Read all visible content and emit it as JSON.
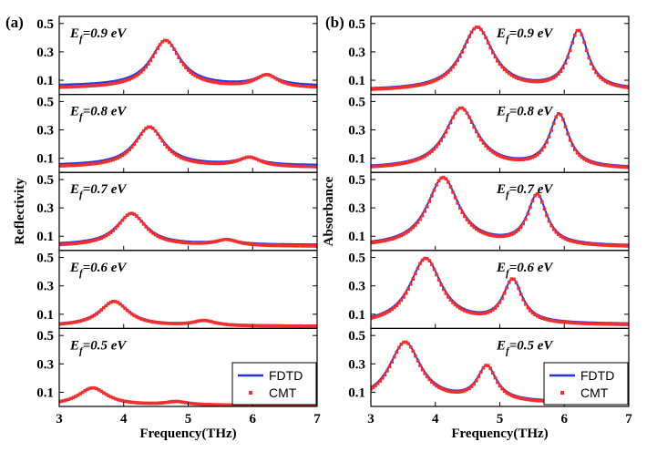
{
  "colors": {
    "fdtd": "#1f35e6",
    "cmt": "#f03030",
    "axis": "#000000"
  },
  "chart_data": [
    {
      "type": "line",
      "panel_label": "(a)",
      "xlabel": "Frequency(THz)",
      "ylabel": "Reflectivity",
      "xlim": [
        3,
        7
      ],
      "xticks": [
        "3",
        "4",
        "5",
        "6",
        "7"
      ],
      "yticks": [
        "0.1",
        "0.3",
        "0.5"
      ],
      "ylim": [
        0,
        0.55
      ],
      "legend": {
        "placement": "bottom-right",
        "entries": [
          "FDTD",
          "CMT"
        ]
      },
      "series_names": [
        "FDTD",
        "CMT"
      ],
      "subplots": [
        {
          "ef_prefix": "E",
          "ef_sub": "f",
          "ef_value": "=0.9 eV",
          "base": 0.06,
          "peaks": [
            {
              "x": 4.65,
              "y": 0.38,
              "w": 0.28
            },
            {
              "x": 6.22,
              "y": 0.13,
              "w": 0.22
            }
          ]
        },
        {
          "ef_prefix": "E",
          "ef_sub": "f",
          "ef_value": "=0.8 eV",
          "base": 0.05,
          "peaks": [
            {
              "x": 4.4,
              "y": 0.32,
              "w": 0.28
            },
            {
              "x": 5.95,
              "y": 0.1,
              "w": 0.22
            }
          ]
        },
        {
          "ef_prefix": "E",
          "ef_sub": "f",
          "ef_value": "=0.7 eV",
          "base": 0.04,
          "peaks": [
            {
              "x": 4.12,
              "y": 0.26,
              "w": 0.28
            },
            {
              "x": 5.6,
              "y": 0.07,
              "w": 0.22
            }
          ]
        },
        {
          "ef_prefix": "E",
          "ef_sub": "f",
          "ef_value": "=0.6 eV",
          "base": 0.02,
          "peaks": [
            {
              "x": 3.85,
              "y": 0.19,
              "w": 0.28
            },
            {
              "x": 5.25,
              "y": 0.05,
              "w": 0.22
            }
          ]
        },
        {
          "ef_prefix": "E",
          "ef_sub": "f",
          "ef_value": "=0.5 eV",
          "base": 0.01,
          "peaks": [
            {
              "x": 3.52,
              "y": 0.13,
              "w": 0.28
            },
            {
              "x": 4.82,
              "y": 0.03,
              "w": 0.22
            }
          ]
        }
      ]
    },
    {
      "type": "line",
      "panel_label": "(b)",
      "xlabel": "Frequency(THz)",
      "ylabel": "Absorbance",
      "xlim": [
        3,
        7
      ],
      "xticks": [
        "3",
        "4",
        "5",
        "6",
        "7"
      ],
      "yticks": [
        "0.1",
        "0.3",
        "0.5"
      ],
      "ylim": [
        0,
        0.55
      ],
      "legend": {
        "placement": "right",
        "entries": [
          "FDTD",
          "CMT"
        ]
      },
      "series_names": [
        "FDTD",
        "CMT"
      ],
      "subplots": [
        {
          "ef_prefix": "E",
          "ef_sub": "f",
          "ef_value": "=0.9 eV",
          "base": 0.03,
          "peaks": [
            {
              "x": 4.65,
              "y": 0.47,
              "w": 0.3
            },
            {
              "x": 6.22,
              "y": 0.44,
              "w": 0.18
            }
          ]
        },
        {
          "ef_prefix": "E",
          "ef_sub": "f",
          "ef_value": "=0.8 eV",
          "base": 0.03,
          "peaks": [
            {
              "x": 4.4,
              "y": 0.45,
              "w": 0.3
            },
            {
              "x": 5.92,
              "y": 0.4,
              "w": 0.18
            }
          ]
        },
        {
          "ef_prefix": "E",
          "ef_sub": "f",
          "ef_value": "=0.7 eV",
          "base": 0.03,
          "peaks": [
            {
              "x": 4.12,
              "y": 0.51,
              "w": 0.3
            },
            {
              "x": 5.58,
              "y": 0.38,
              "w": 0.18
            }
          ]
        },
        {
          "ef_prefix": "E",
          "ef_sub": "f",
          "ef_value": "=0.6 eV",
          "base": 0.03,
          "peaks": [
            {
              "x": 3.85,
              "y": 0.49,
              "w": 0.3
            },
            {
              "x": 5.2,
              "y": 0.33,
              "w": 0.18
            }
          ]
        },
        {
          "ef_prefix": "E",
          "ef_sub": "f",
          "ef_value": "=0.5 eV",
          "base": 0.03,
          "peaks": [
            {
              "x": 3.53,
              "y": 0.45,
              "w": 0.3
            },
            {
              "x": 4.8,
              "y": 0.27,
              "w": 0.18
            }
          ]
        }
      ]
    }
  ]
}
